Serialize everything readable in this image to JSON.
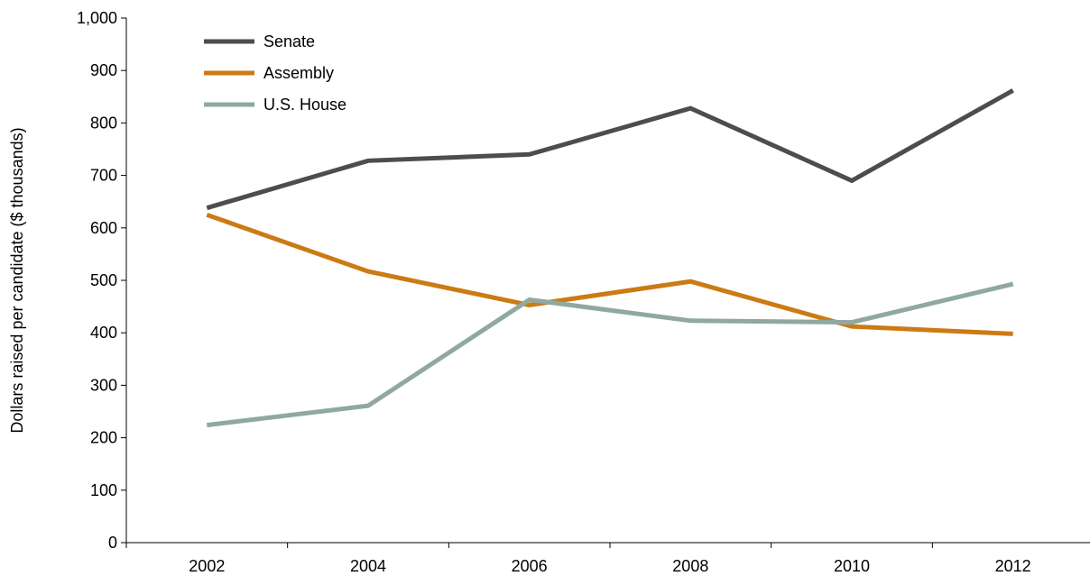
{
  "chart_data": {
    "type": "line",
    "title": "",
    "xlabel": "",
    "ylabel": "Dollars raised per candidate ($ thousands)",
    "categories": [
      "2002",
      "2004",
      "2006",
      "2008",
      "2010",
      "2012"
    ],
    "ylim": [
      0,
      1000
    ],
    "yticks": [
      0,
      100,
      200,
      300,
      400,
      500,
      600,
      700,
      800,
      900,
      1000
    ],
    "ytick_labels": [
      "0",
      "100",
      "200",
      "300",
      "400",
      "500",
      "600",
      "700",
      "800",
      "900",
      "1,000"
    ],
    "grid": false,
    "legend_position": "top-left",
    "series": [
      {
        "name": "Senate",
        "color": "#4d4d4f",
        "values": [
          638,
          728,
          740,
          828,
          690,
          862
        ]
      },
      {
        "name": "Assembly",
        "color": "#cc7a14",
        "values": [
          625,
          517,
          453,
          498,
          412,
          398
        ]
      },
      {
        "name": "U.S. House",
        "color": "#8fa8a0",
        "values": [
          224,
          261,
          463,
          423,
          420,
          493
        ]
      }
    ]
  }
}
